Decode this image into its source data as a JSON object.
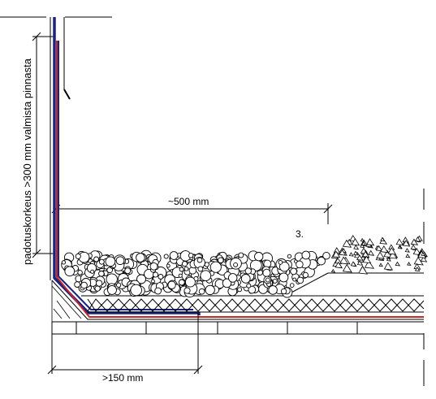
{
  "labels": {
    "dim_500": "~500 mm",
    "dim_150": ">150 mm",
    "vertical": "padotuskorkeus >300 mm valmista pinnasta",
    "marker": "3."
  },
  "colors": {
    "membrane_blue": "#1a237e",
    "membrane_red": "#c62828",
    "line": "#000000"
  }
}
